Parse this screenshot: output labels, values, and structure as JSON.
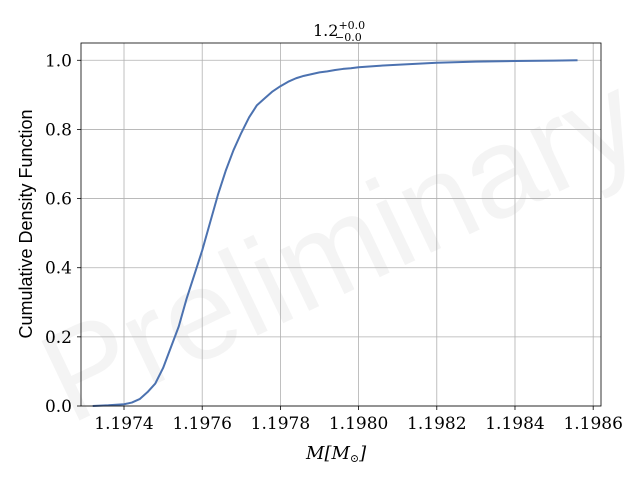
{
  "chart_data": {
    "type": "line",
    "title_main": "1.2",
    "title_sup": "+0.0",
    "title_sub": "−0.0",
    "xlabel_script": "M",
    "xlabel_unit": "[M",
    "xlabel_sun": "⊙",
    "xlabel_close": "]",
    "ylabel": "Cumulative Density Function",
    "watermark": "Preliminary",
    "xlim": [
      1.19729,
      1.19862
    ],
    "ylim": [
      0.0,
      1.05
    ],
    "x_ticks": [
      1.1974,
      1.1976,
      1.1978,
      1.198,
      1.1982,
      1.1984,
      1.1986
    ],
    "x_tick_labels": [
      "1.1974",
      "1.1976",
      "1.1978",
      "1.1980",
      "1.1982",
      "1.1984",
      "1.1986"
    ],
    "y_ticks": [
      0.0,
      0.2,
      0.4,
      0.6,
      0.8,
      1.0
    ],
    "y_tick_labels": [
      "0.0",
      "0.2",
      "0.4",
      "0.6",
      "0.8",
      "1.0"
    ],
    "grid": true,
    "color": "#4c72b0",
    "series": [
      {
        "x": [
          1.19732,
          1.19736,
          1.1974,
          1.19742,
          1.19744,
          1.19746,
          1.19748,
          1.1975,
          1.19752,
          1.19754,
          1.19756,
          1.19758,
          1.1976,
          1.19762,
          1.19764,
          1.19766,
          1.19768,
          1.1977,
          1.19772,
          1.19774,
          1.19776,
          1.19778,
          1.1978,
          1.19782,
          1.19784,
          1.19786,
          1.19788,
          1.1979,
          1.19792,
          1.19794,
          1.19796,
          1.19798,
          1.198,
          1.19805,
          1.1981,
          1.19815,
          1.1982,
          1.1983,
          1.1984,
          1.1985,
          1.19856
        ],
        "y": [
          0.0,
          0.002,
          0.005,
          0.01,
          0.02,
          0.04,
          0.065,
          0.11,
          0.17,
          0.23,
          0.31,
          0.38,
          0.45,
          0.53,
          0.61,
          0.68,
          0.74,
          0.79,
          0.835,
          0.87,
          0.89,
          0.91,
          0.925,
          0.938,
          0.948,
          0.955,
          0.96,
          0.965,
          0.968,
          0.972,
          0.975,
          0.977,
          0.98,
          0.984,
          0.987,
          0.99,
          0.993,
          0.996,
          0.998,
          0.999,
          1.0
        ]
      }
    ]
  }
}
